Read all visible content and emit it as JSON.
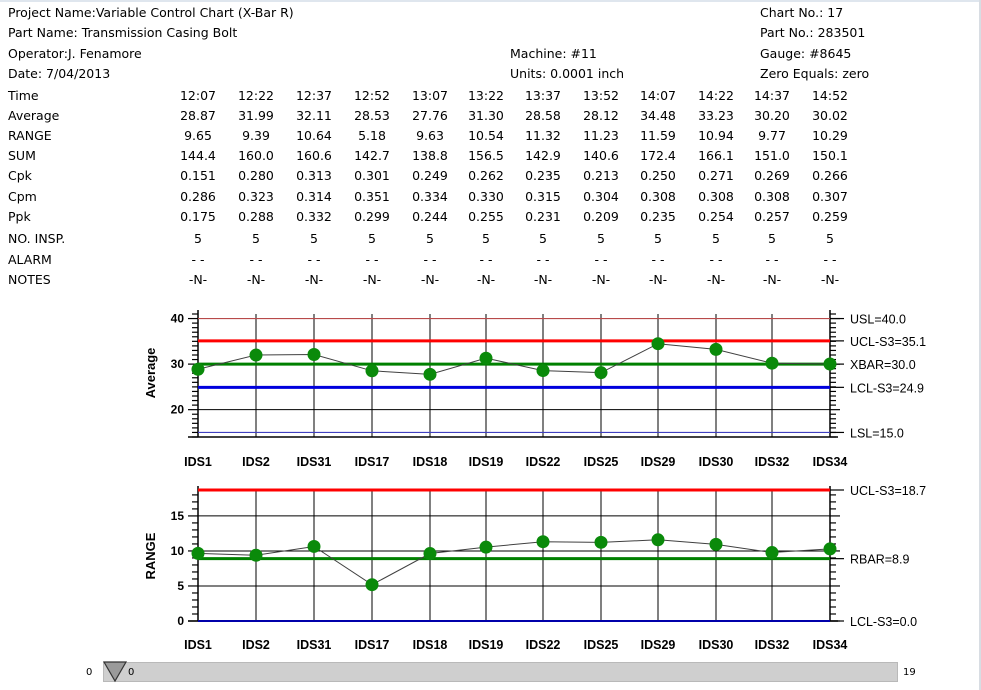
{
  "header": {
    "project_name": "Project Name:Variable Control Chart (X-Bar R)",
    "part_name": "Part Name: Transmission Casing Bolt",
    "operator": "Operator:J. Fenamore",
    "date": "Date: 7/04/2013",
    "machine": "Machine: #11",
    "units": "Units: 0.0001 inch",
    "chart_no": "Chart No.: 17",
    "part_no": "Part No.: 283501",
    "gauge": "Gauge: #8645",
    "zero_equals": "Zero Equals: zero"
  },
  "table": {
    "row_labels": [
      "Time",
      "Average",
      "RANGE",
      "SUM",
      "Cpk",
      "Cpm",
      "Ppk",
      "NO. INSP.",
      "ALARM",
      "NOTES"
    ],
    "columns": [
      {
        "time": "12:07",
        "average": "28.87",
        "range": "9.65",
        "sum": "144.4",
        "cpk": "0.151",
        "cpm": "0.286",
        "ppk": "0.175",
        "insp": "5",
        "alarm": "-  -",
        "notes": "-N-"
      },
      {
        "time": "12:22",
        "average": "31.99",
        "range": "9.39",
        "sum": "160.0",
        "cpk": "0.280",
        "cpm": "0.323",
        "ppk": "0.288",
        "insp": "5",
        "alarm": "-  -",
        "notes": "-N-"
      },
      {
        "time": "12:37",
        "average": "32.11",
        "range": "10.64",
        "sum": "160.6",
        "cpk": "0.313",
        "cpm": "0.314",
        "ppk": "0.332",
        "insp": "5",
        "alarm": "-  -",
        "notes": "-N-"
      },
      {
        "time": "12:52",
        "average": "28.53",
        "range": "5.18",
        "sum": "142.7",
        "cpk": "0.301",
        "cpm": "0.351",
        "ppk": "0.299",
        "insp": "5",
        "alarm": "-  -",
        "notes": "-N-"
      },
      {
        "time": "13:07",
        "average": "27.76",
        "range": "9.63",
        "sum": "138.8",
        "cpk": "0.249",
        "cpm": "0.334",
        "ppk": "0.244",
        "insp": "5",
        "alarm": "-  -",
        "notes": "-N-"
      },
      {
        "time": "13:22",
        "average": "31.30",
        "range": "10.54",
        "sum": "156.5",
        "cpk": "0.262",
        "cpm": "0.330",
        "ppk": "0.255",
        "insp": "5",
        "alarm": "-  -",
        "notes": "-N-"
      },
      {
        "time": "13:37",
        "average": "28.58",
        "range": "11.32",
        "sum": "142.9",
        "cpk": "0.235",
        "cpm": "0.315",
        "ppk": "0.231",
        "insp": "5",
        "alarm": "-  -",
        "notes": "-N-"
      },
      {
        "time": "13:52",
        "average": "28.12",
        "range": "11.23",
        "sum": "140.6",
        "cpk": "0.213",
        "cpm": "0.304",
        "ppk": "0.209",
        "insp": "5",
        "alarm": "-  -",
        "notes": "-N-"
      },
      {
        "time": "14:07",
        "average": "34.48",
        "range": "11.59",
        "sum": "172.4",
        "cpk": "0.250",
        "cpm": "0.308",
        "ppk": "0.235",
        "insp": "5",
        "alarm": "-  -",
        "notes": "-N-"
      },
      {
        "time": "14:22",
        "average": "33.23",
        "range": "10.94",
        "sum": "166.1",
        "cpk": "0.271",
        "cpm": "0.308",
        "ppk": "0.254",
        "insp": "5",
        "alarm": "-  -",
        "notes": "-N-"
      },
      {
        "time": "14:37",
        "average": "30.20",
        "range": "9.77",
        "sum": "151.0",
        "cpk": "0.269",
        "cpm": "0.308",
        "ppk": "0.257",
        "insp": "5",
        "alarm": "-  -",
        "notes": "-N-"
      },
      {
        "time": "14:52",
        "average": "30.02",
        "range": "10.29",
        "sum": "150.1",
        "cpk": "0.266",
        "cpm": "0.307",
        "ppk": "0.259",
        "insp": "5",
        "alarm": "-  -",
        "notes": "-N-"
      }
    ]
  },
  "chart_data": [
    {
      "type": "line",
      "ylabel": "Average",
      "categories": [
        "IDS1",
        "IDS2",
        "IDS31",
        "IDS17",
        "IDS18",
        "IDS19",
        "IDS22",
        "IDS25",
        "IDS29",
        "IDS30",
        "IDS32",
        "IDS34"
      ],
      "values": [
        28.87,
        31.99,
        32.11,
        28.53,
        27.76,
        31.3,
        28.58,
        28.12,
        34.48,
        33.23,
        30.2,
        30.02
      ],
      "ylim": [
        14,
        41
      ],
      "yticks": [
        20,
        30,
        40
      ],
      "limits": [
        {
          "label": "USL=40.0",
          "value": 40.0,
          "color": "#b84a4a",
          "width": 1.2
        },
        {
          "label": "UCL-S3=35.1",
          "value": 35.1,
          "color": "#ff0000",
          "width": 3
        },
        {
          "label": "XBAR=30.0",
          "value": 30.0,
          "color": "#008000",
          "width": 3
        },
        {
          "label": "LCL-S3=24.9",
          "value": 24.9,
          "color": "#0000dd",
          "width": 3
        },
        {
          "label": "LSL=15.0",
          "value": 15.0,
          "color": "#4040c0",
          "width": 1.2
        }
      ],
      "grid": true
    },
    {
      "type": "line",
      "ylabel": "RANGE",
      "categories": [
        "IDS1",
        "IDS2",
        "IDS31",
        "IDS17",
        "IDS18",
        "IDS19",
        "IDS22",
        "IDS25",
        "IDS29",
        "IDS30",
        "IDS32",
        "IDS34"
      ],
      "values": [
        9.65,
        9.39,
        10.64,
        5.18,
        9.63,
        10.54,
        11.32,
        11.23,
        11.59,
        10.94,
        9.77,
        10.29
      ],
      "ylim": [
        0,
        18.7
      ],
      "yticks": [
        0,
        5,
        10,
        15
      ],
      "limits": [
        {
          "label": "UCL-S3=18.7",
          "value": 18.7,
          "color": "#ff0000",
          "width": 3
        },
        {
          "label": "RBAR=8.9",
          "value": 8.9,
          "color": "#008000",
          "width": 3
        },
        {
          "label": "LCL-S3=0.0",
          "value": 0.0,
          "color": "#0000aa",
          "width": 2
        }
      ],
      "grid": true
    }
  ],
  "scrollbar": {
    "min_label": "0",
    "thumb_label": "0",
    "max_label": "19",
    "value": 0
  },
  "colors": {
    "point": "#0a8a0a",
    "series_line": "#404040",
    "grid": "#000000"
  }
}
